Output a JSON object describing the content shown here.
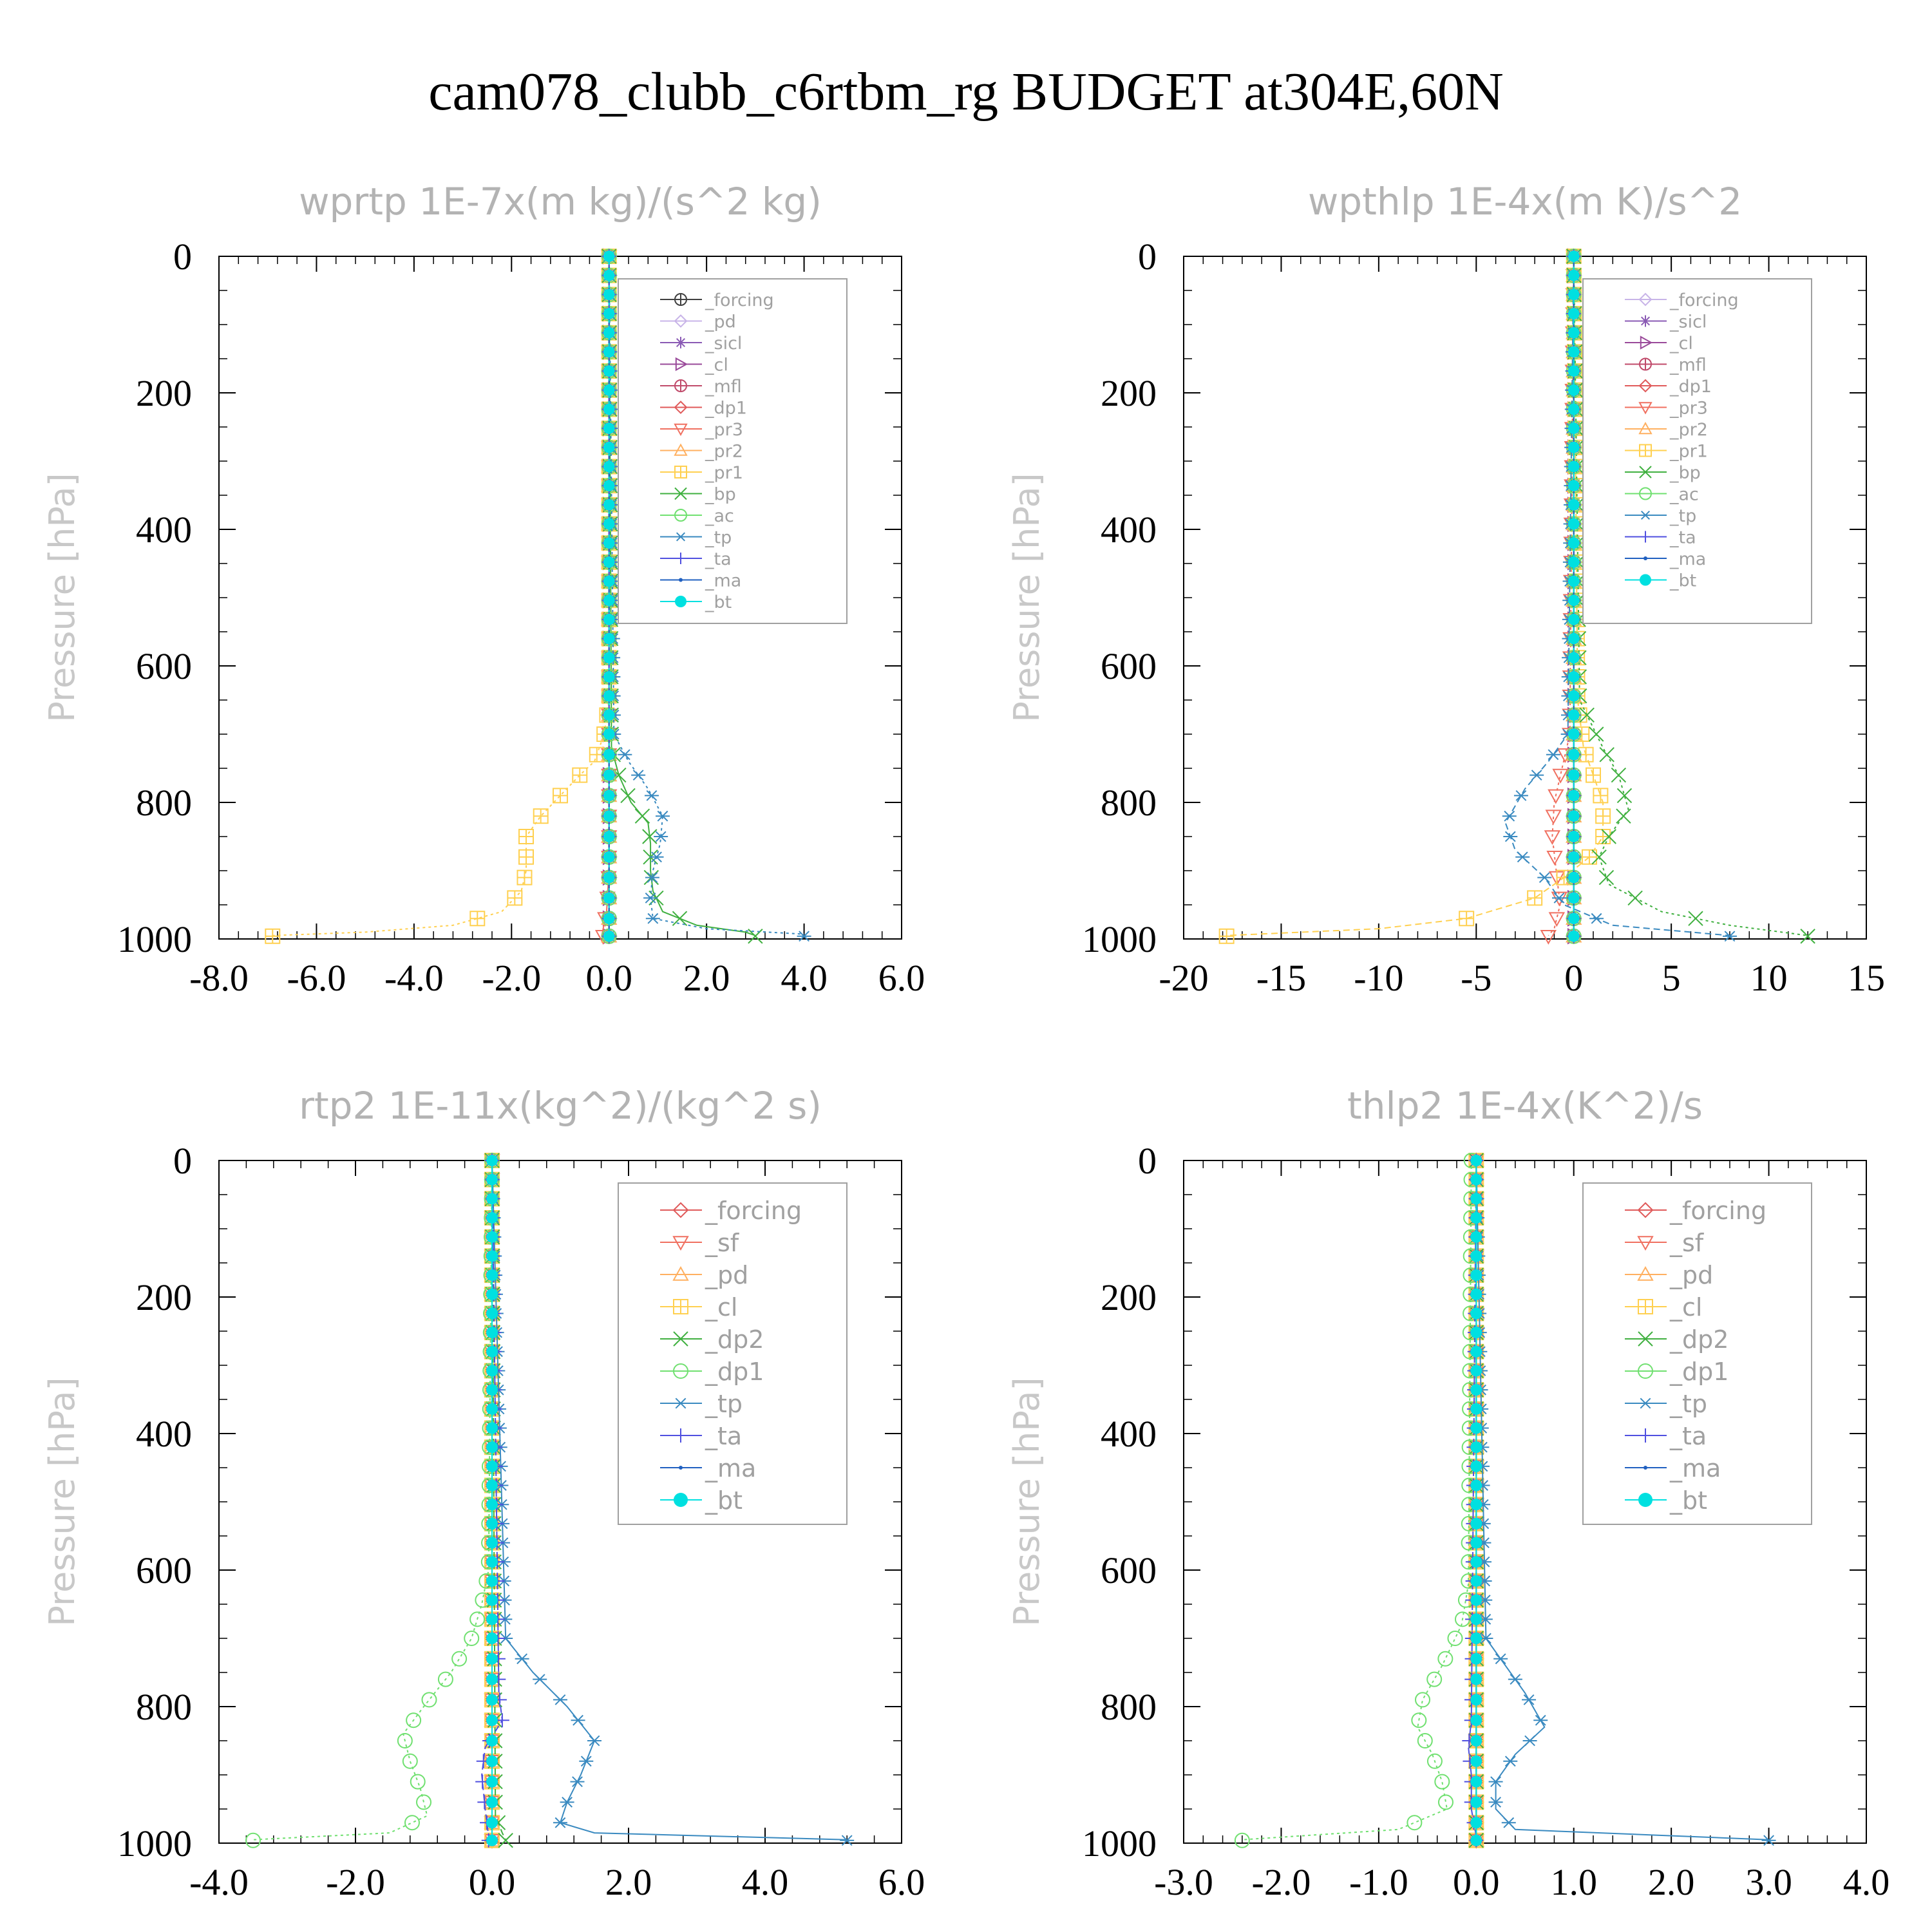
{
  "title": "cam078_clubb_c6rtbm_rg  BUDGET at304E,60N",
  "ylabel": "Pressure [hPa]",
  "chart_data": [
    {
      "type": "line",
      "title": "wprtp   1E-7x(m kg)/(s^2 kg)",
      "xlim": [
        -8,
        6
      ],
      "ylim": [
        1000,
        0
      ],
      "xticks": [
        "-8.0",
        "-6.0",
        "-4.0",
        "-2.0",
        "0.0",
        "2.0",
        "4.0",
        "6.0"
      ],
      "xtick_values": [
        -8,
        -6,
        -4,
        -2,
        0,
        2,
        4,
        6
      ],
      "yticks": [
        "0",
        "200",
        "400",
        "600",
        "800",
        "1000"
      ],
      "ytick_values": [
        0,
        200,
        400,
        600,
        800,
        1000
      ],
      "legend_small": true,
      "series": [
        {
          "name": "_forcing",
          "color": "#404040",
          "marker": "circlecross",
          "p": [
            0,
            1000
          ],
          "x": [
            0,
            0
          ]
        },
        {
          "name": "_pd",
          "color": "#c8b4e8",
          "marker": "diamond",
          "p": [
            0,
            1000
          ],
          "x": [
            0,
            0
          ]
        },
        {
          "name": "_sicl",
          "color": "#8a5ab4",
          "marker": "star",
          "p": [
            0,
            1000
          ],
          "x": [
            0,
            0
          ]
        },
        {
          "name": "_cl",
          "color": "#9a4a9a",
          "marker": "triright",
          "p": [
            0,
            1000
          ],
          "x": [
            0,
            0
          ]
        },
        {
          "name": "_mfl",
          "color": "#c04a6a",
          "marker": "circlecross",
          "p": [
            0,
            1000
          ],
          "x": [
            0,
            0
          ]
        },
        {
          "name": "_dp1",
          "color": "#e05a5a",
          "marker": "diamond",
          "p": [
            0,
            1000
          ],
          "x": [
            0,
            0
          ]
        },
        {
          "name": "_pr3",
          "color": "#f07060",
          "marker": "tridown",
          "p": [
            0,
            900,
            960,
            985,
            995,
            1000
          ],
          "x": [
            0,
            0,
            -0.05,
            -0.12,
            -0.15,
            0
          ]
        },
        {
          "name": "_pr2",
          "color": "#ffb060",
          "marker": "triup",
          "p": [
            0,
            1000
          ],
          "x": [
            0,
            0
          ]
        },
        {
          "name": "_pr1",
          "color": "#ffd050",
          "marker": "squarecross",
          "p": [
            0,
            650,
            700,
            740,
            760,
            790,
            820,
            850,
            870,
            900,
            930,
            960,
            980,
            990,
            995
          ],
          "x": [
            0,
            0,
            -0.1,
            -0.3,
            -0.6,
            -1.0,
            -1.4,
            -1.7,
            -1.7,
            -1.7,
            -1.8,
            -2.2,
            -3.2,
            -5.0,
            -6.9
          ]
        },
        {
          "name": "_bp",
          "color": "#40b040",
          "marker": "cross",
          "p": [
            0,
            720,
            760,
            800,
            830,
            860,
            900,
            930,
            960,
            980,
            990,
            995
          ],
          "x": [
            0,
            0.05,
            0.2,
            0.45,
            0.8,
            0.85,
            0.85,
            0.9,
            1.1,
            1.8,
            2.8,
            3.0
          ]
        },
        {
          "name": "_ac",
          "color": "#70e070",
          "marker": "circle",
          "p": [
            0,
            1000
          ],
          "x": [
            0,
            0
          ]
        },
        {
          "name": "_tp",
          "color": "#3a8ac0",
          "marker": "asterisk",
          "p": [
            0,
            700,
            740,
            780,
            820,
            860,
            900,
            940,
            970,
            985,
            993
          ],
          "x": [
            0,
            0.1,
            0.4,
            0.8,
            1.1,
            1.05,
            0.9,
            0.85,
            0.9,
            2.0,
            4.0
          ]
        },
        {
          "name": "_ta",
          "color": "#5050e0",
          "marker": "plus",
          "p": [
            0,
            1000
          ],
          "x": [
            0,
            0
          ]
        },
        {
          "name": "_ma",
          "color": "#2060c0",
          "marker": "dot",
          "p": [
            0,
            1000
          ],
          "x": [
            0,
            0
          ]
        },
        {
          "name": "_bt",
          "color": "#00e0e0",
          "marker": "filled",
          "p": [
            0,
            1000
          ],
          "x": [
            0,
            0
          ]
        }
      ]
    },
    {
      "type": "line",
      "title": "wpthlp   1E-4x(m K)/s^2",
      "xlim": [
        -20,
        15
      ],
      "ylim": [
        1000,
        0
      ],
      "xticks": [
        "-20",
        "-15",
        "-10",
        "-5",
        "0",
        "5",
        "10",
        "15"
      ],
      "xtick_values": [
        -20,
        -15,
        -10,
        -5,
        0,
        5,
        10,
        15
      ],
      "yticks": [
        "0",
        "200",
        "400",
        "600",
        "800",
        "1000"
      ],
      "ytick_values": [
        0,
        200,
        400,
        600,
        800,
        1000
      ],
      "legend_small": true,
      "series": [
        {
          "name": "_forcing",
          "color": "#c8b4e8",
          "marker": "diamond",
          "p": [
            0,
            1000
          ],
          "x": [
            0,
            0
          ]
        },
        {
          "name": "_sicl",
          "color": "#8a5ab4",
          "marker": "star",
          "p": [
            0,
            1000
          ],
          "x": [
            0,
            0
          ]
        },
        {
          "name": "_cl",
          "color": "#9a4a9a",
          "marker": "triright",
          "p": [
            0,
            1000
          ],
          "x": [
            0,
            0
          ]
        },
        {
          "name": "_mfl",
          "color": "#c04a6a",
          "marker": "circlecross",
          "p": [
            0,
            1000
          ],
          "x": [
            0,
            0
          ]
        },
        {
          "name": "_dp1",
          "color": "#e05a5a",
          "marker": "diamond",
          "p": [
            0,
            1000
          ],
          "x": [
            0,
            0
          ]
        },
        {
          "name": "_pr3",
          "color": "#f07060",
          "marker": "tridown",
          "p": [
            0,
            700,
            750,
            800,
            850,
            900,
            950,
            985,
            995
          ],
          "x": [
            0,
            -0.2,
            -0.6,
            -1.0,
            -1.1,
            -0.9,
            -0.7,
            -1.0,
            -1.3
          ]
        },
        {
          "name": "_pr2",
          "color": "#ffb060",
          "marker": "triup",
          "p": [
            0,
            1000
          ],
          "x": [
            0,
            0
          ]
        },
        {
          "name": "_pr1",
          "color": "#ffd050",
          "marker": "squarecross",
          "p": [
            0,
            650,
            720,
            760,
            800,
            850,
            880,
            910,
            940,
            970,
            985,
            995
          ],
          "x": [
            0,
            0.2,
            0.5,
            1.0,
            1.5,
            1.5,
            0.8,
            -0.5,
            -2.0,
            -5.5,
            -10.0,
            -17.8
          ]
        },
        {
          "name": "_bp",
          "color": "#40b040",
          "marker": "cross",
          "p": [
            0,
            650,
            720,
            760,
            810,
            850,
            880,
            920,
            960,
            980,
            995
          ],
          "x": [
            0,
            0.3,
            1.5,
            2.3,
            2.8,
            1.8,
            1.3,
            1.8,
            4.5,
            8.0,
            12.0
          ]
        },
        {
          "name": "_ac",
          "color": "#70e070",
          "marker": "circle",
          "p": [
            0,
            1000
          ],
          "x": [
            0,
            0
          ]
        },
        {
          "name": "_tp",
          "color": "#3a8ac0",
          "marker": "asterisk",
          "p": [
            0,
            700,
            740,
            780,
            830,
            870,
            910,
            950,
            980,
            995
          ],
          "x": [
            0,
            -0.3,
            -1.3,
            -2.5,
            -3.5,
            -3.0,
            -1.5,
            -0.5,
            2.0,
            8.0
          ]
        },
        {
          "name": "_ta",
          "color": "#5050e0",
          "marker": "plus",
          "p": [
            0,
            1000
          ],
          "x": [
            0,
            0
          ]
        },
        {
          "name": "_ma",
          "color": "#2060c0",
          "marker": "dot",
          "p": [
            0,
            1000
          ],
          "x": [
            0,
            0
          ]
        },
        {
          "name": "_bt",
          "color": "#00e0e0",
          "marker": "filled",
          "p": [
            0,
            1000
          ],
          "x": [
            0,
            0
          ]
        }
      ]
    },
    {
      "type": "line",
      "title": "rtp2   1E-11x(kg^2)/(kg^2 s)",
      "xlim": [
        -4,
        6
      ],
      "ylim": [
        1000,
        0
      ],
      "xticks": [
        "-4.0",
        "-2.0",
        "0.0",
        "2.0",
        "4.0",
        "6.0"
      ],
      "xtick_values": [
        -4,
        -2,
        0,
        2,
        4,
        6
      ],
      "yticks": [
        "0",
        "200",
        "400",
        "600",
        "800",
        "1000"
      ],
      "ytick_values": [
        0,
        200,
        400,
        600,
        800,
        1000
      ],
      "legend_small": false,
      "series": [
        {
          "name": "_forcing",
          "color": "#e05a5a",
          "marker": "diamond",
          "p": [
            0,
            1000
          ],
          "x": [
            0,
            0
          ]
        },
        {
          "name": "_sf",
          "color": "#f07060",
          "marker": "tridown",
          "p": [
            0,
            1000
          ],
          "x": [
            0,
            0
          ]
        },
        {
          "name": "_pd",
          "color": "#ffb060",
          "marker": "triup",
          "p": [
            0,
            1000
          ],
          "x": [
            0,
            0
          ]
        },
        {
          "name": "_cl",
          "color": "#ffd050",
          "marker": "squarecross",
          "p": [
            0,
            1000
          ],
          "x": [
            0,
            0
          ]
        },
        {
          "name": "_dp2",
          "color": "#40b040",
          "marker": "cross",
          "p": [
            0,
            960,
            985,
            995
          ],
          "x": [
            0,
            0.05,
            0.15,
            0.2
          ]
        },
        {
          "name": "_dp1",
          "color": "#70e070",
          "marker": "circle",
          "p": [
            0,
            600,
            650,
            700,
            750,
            800,
            840,
            880,
            920,
            960,
            985,
            995
          ],
          "x": [
            0,
            -0.05,
            -0.15,
            -0.3,
            -0.6,
            -1.0,
            -1.3,
            -1.2,
            -1.05,
            -0.95,
            -1.5,
            -3.5
          ]
        },
        {
          "name": "_tp",
          "color": "#3a8ac0",
          "marker": "asterisk",
          "p": [
            0,
            700,
            750,
            800,
            850,
            900,
            940,
            970,
            985,
            995
          ],
          "x": [
            0,
            0.2,
            0.6,
            1.1,
            1.5,
            1.3,
            1.1,
            1.0,
            1.5,
            5.2
          ]
        },
        {
          "name": "_ta",
          "color": "#5050e0",
          "marker": "plus",
          "p": [
            0,
            780,
            820,
            860,
            900,
            950,
            990
          ],
          "x": [
            0,
            0.1,
            0.15,
            -0.1,
            -0.15,
            -0.1,
            -0.05
          ]
        },
        {
          "name": "_ma",
          "color": "#2060c0",
          "marker": "dot",
          "p": [
            0,
            1000
          ],
          "x": [
            0,
            0
          ]
        },
        {
          "name": "_bt",
          "color": "#00e0e0",
          "marker": "filled",
          "p": [
            0,
            1000
          ],
          "x": [
            0,
            0
          ]
        }
      ]
    },
    {
      "type": "line",
      "title": "thlp2   1E-4x(K^2)/s",
      "xlim": [
        -3,
        4
      ],
      "ylim": [
        1000,
        0
      ],
      "xticks": [
        "-3.0",
        "-2.0",
        "-1.0",
        "0.0",
        "1.0",
        "2.0",
        "3.0",
        "4.0"
      ],
      "xtick_values": [
        -3,
        -2,
        -1,
        0,
        1,
        2,
        3,
        4
      ],
      "yticks": [
        "0",
        "200",
        "400",
        "600",
        "800",
        "1000"
      ],
      "ytick_values": [
        0,
        200,
        400,
        600,
        800,
        1000
      ],
      "legend_small": false,
      "series": [
        {
          "name": "_forcing",
          "color": "#e05a5a",
          "marker": "diamond",
          "p": [
            0,
            1000
          ],
          "x": [
            0,
            0
          ]
        },
        {
          "name": "_sf",
          "color": "#f07060",
          "marker": "tridown",
          "p": [
            0,
            1000
          ],
          "x": [
            0,
            0
          ]
        },
        {
          "name": "_pd",
          "color": "#ffb060",
          "marker": "triup",
          "p": [
            0,
            1000
          ],
          "x": [
            0,
            0
          ]
        },
        {
          "name": "_cl",
          "color": "#ffd050",
          "marker": "squarecross",
          "p": [
            0,
            1000
          ],
          "x": [
            0,
            0
          ]
        },
        {
          "name": "_dp2",
          "color": "#40b040",
          "marker": "cross",
          "p": [
            0,
            1000
          ],
          "x": [
            0,
            0
          ]
        },
        {
          "name": "_dp1",
          "color": "#70e070",
          "marker": "circle",
          "p": [
            0,
            620,
            680,
            740,
            790,
            830,
            870,
            910,
            950,
            980,
            995
          ],
          "x": [
            -0.05,
            -0.08,
            -0.15,
            -0.35,
            -0.55,
            -0.6,
            -0.45,
            -0.35,
            -0.3,
            -0.8,
            -2.4
          ]
        },
        {
          "name": "_tp",
          "color": "#3a8ac0",
          "marker": "asterisk",
          "p": [
            0,
            700,
            740,
            780,
            830,
            870,
            910,
            950,
            980,
            995
          ],
          "x": [
            0,
            0.1,
            0.3,
            0.5,
            0.7,
            0.4,
            0.2,
            0.2,
            0.4,
            3.0
          ]
        },
        {
          "name": "_ta",
          "color": "#5050e0",
          "marker": "plus",
          "p": [
            0,
            820,
            860,
            900,
            950,
            990
          ],
          "x": [
            0,
            -0.05,
            -0.08,
            -0.05,
            -0.05,
            0
          ]
        },
        {
          "name": "_ma",
          "color": "#2060c0",
          "marker": "dot",
          "p": [
            0,
            1000
          ],
          "x": [
            0,
            0
          ]
        },
        {
          "name": "_bt",
          "color": "#00e0e0",
          "marker": "filled",
          "p": [
            0,
            1000
          ],
          "x": [
            0,
            0
          ]
        }
      ]
    }
  ]
}
